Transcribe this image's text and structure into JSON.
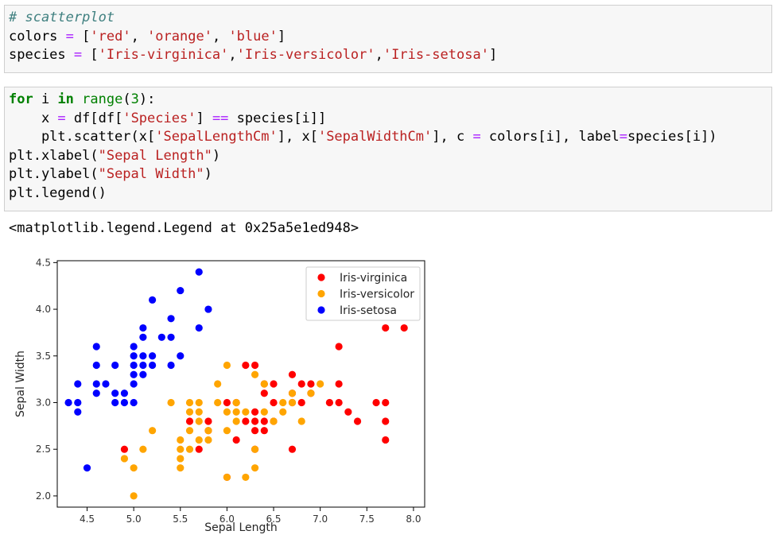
{
  "cell1": {
    "lines": [
      [
        {
          "t": "# scatterplot",
          "c": "comment"
        }
      ],
      [
        {
          "t": "colors "
        },
        {
          "t": "=",
          "c": "op"
        },
        {
          "t": " ["
        },
        {
          "t": "'red'",
          "c": "str"
        },
        {
          "t": ", "
        },
        {
          "t": "'orange'",
          "c": "str"
        },
        {
          "t": ", "
        },
        {
          "t": "'blue'",
          "c": "str"
        },
        {
          "t": "]"
        }
      ],
      [
        {
          "t": "species "
        },
        {
          "t": "=",
          "c": "op"
        },
        {
          "t": " ["
        },
        {
          "t": "'Iris-virginica'",
          "c": "str"
        },
        {
          "t": ","
        },
        {
          "t": "'Iris-versicolor'",
          "c": "str"
        },
        {
          "t": ","
        },
        {
          "t": "'Iris-setosa'",
          "c": "str"
        },
        {
          "t": "]"
        }
      ]
    ]
  },
  "cell2": {
    "lines": [
      [
        {
          "t": "for",
          "c": "kw"
        },
        {
          "t": " i "
        },
        {
          "t": "in",
          "c": "kw"
        },
        {
          "t": " "
        },
        {
          "t": "range",
          "c": "builtin"
        },
        {
          "t": "("
        },
        {
          "t": "3",
          "c": "num"
        },
        {
          "t": "):"
        }
      ],
      [
        {
          "t": "    x "
        },
        {
          "t": "=",
          "c": "op"
        },
        {
          "t": " df[df["
        },
        {
          "t": "'Species'",
          "c": "str"
        },
        {
          "t": "] "
        },
        {
          "t": "==",
          "c": "op"
        },
        {
          "t": " species[i]]"
        }
      ],
      [
        {
          "t": "    plt.scatter(x["
        },
        {
          "t": "'SepalLengthCm'",
          "c": "str"
        },
        {
          "t": "], x["
        },
        {
          "t": "'SepalWidthCm'",
          "c": "str"
        },
        {
          "t": "], c "
        },
        {
          "t": "=",
          "c": "op"
        },
        {
          "t": " colors[i], label"
        },
        {
          "t": "=",
          "c": "op"
        },
        {
          "t": "species[i])"
        }
      ],
      [
        {
          "t": "plt.xlabel("
        },
        {
          "t": "\"Sepal Length\"",
          "c": "str"
        },
        {
          "t": ")"
        }
      ],
      [
        {
          "t": "plt.ylabel("
        },
        {
          "t": "\"Sepal Width\"",
          "c": "str"
        },
        {
          "t": ")"
        }
      ],
      [
        {
          "t": "plt.legend()"
        }
      ]
    ]
  },
  "output": {
    "text": "<matplotlib.legend.Legend at 0x25a5e1ed948>"
  },
  "chart_data": {
    "type": "scatter",
    "xlabel": "Sepal Length",
    "ylabel": "Sepal Width",
    "xlim": [
      4.18,
      8.12
    ],
    "ylim": [
      1.88,
      4.52
    ],
    "xticks": [
      "4.5",
      "5.0",
      "5.5",
      "6.0",
      "6.5",
      "7.0",
      "7.5",
      "8.0"
    ],
    "yticks": [
      "2.0",
      "2.5",
      "3.0",
      "3.5",
      "4.0",
      "4.5"
    ],
    "legend_position": "top-right",
    "series": [
      {
        "name": "Iris-virginica",
        "color": "#ff0000",
        "points": [
          [
            4.9,
            2.5
          ],
          [
            5.6,
            2.8
          ],
          [
            5.7,
            2.5
          ],
          [
            5.8,
            2.8
          ],
          [
            5.8,
            2.7
          ],
          [
            6.0,
            3.0
          ],
          [
            6.0,
            2.2
          ],
          [
            6.1,
            3.0
          ],
          [
            6.1,
            2.6
          ],
          [
            6.2,
            3.4
          ],
          [
            6.2,
            2.8
          ],
          [
            6.3,
            3.4
          ],
          [
            6.3,
            2.9
          ],
          [
            6.3,
            2.8
          ],
          [
            6.3,
            2.7
          ],
          [
            6.3,
            2.5
          ],
          [
            6.4,
            3.2
          ],
          [
            6.4,
            3.1
          ],
          [
            6.4,
            2.8
          ],
          [
            6.4,
            2.7
          ],
          [
            6.5,
            3.2
          ],
          [
            6.5,
            3.0
          ],
          [
            6.5,
            2.8
          ],
          [
            6.7,
            3.3
          ],
          [
            6.7,
            3.1
          ],
          [
            6.7,
            3.0
          ],
          [
            6.7,
            2.5
          ],
          [
            6.8,
            3.2
          ],
          [
            6.8,
            3.0
          ],
          [
            6.9,
            3.2
          ],
          [
            6.9,
            3.1
          ],
          [
            7.1,
            3.0
          ],
          [
            7.2,
            3.6
          ],
          [
            7.2,
            3.2
          ],
          [
            7.2,
            3.0
          ],
          [
            7.3,
            2.9
          ],
          [
            7.4,
            2.8
          ],
          [
            7.6,
            3.0
          ],
          [
            7.7,
            3.8
          ],
          [
            7.7,
            3.0
          ],
          [
            7.7,
            2.8
          ],
          [
            7.7,
            2.6
          ],
          [
            7.9,
            3.8
          ]
        ]
      },
      {
        "name": "Iris-versicolor",
        "color": "#ffa500",
        "points": [
          [
            4.9,
            2.4
          ],
          [
            5.0,
            2.3
          ],
          [
            5.0,
            2.0
          ],
          [
            5.1,
            2.5
          ],
          [
            5.2,
            2.7
          ],
          [
            5.4,
            3.0
          ],
          [
            5.5,
            2.6
          ],
          [
            5.5,
            2.5
          ],
          [
            5.5,
            2.4
          ],
          [
            5.5,
            2.3
          ],
          [
            5.6,
            3.0
          ],
          [
            5.6,
            2.9
          ],
          [
            5.6,
            2.7
          ],
          [
            5.6,
            2.5
          ],
          [
            5.7,
            3.0
          ],
          [
            5.7,
            2.9
          ],
          [
            5.7,
            2.8
          ],
          [
            5.7,
            2.6
          ],
          [
            5.8,
            2.7
          ],
          [
            5.8,
            2.6
          ],
          [
            5.9,
            3.2
          ],
          [
            5.9,
            3.0
          ],
          [
            6.0,
            3.4
          ],
          [
            6.0,
            2.9
          ],
          [
            6.0,
            2.7
          ],
          [
            6.0,
            2.2
          ],
          [
            6.1,
            3.0
          ],
          [
            6.1,
            2.9
          ],
          [
            6.1,
            2.8
          ],
          [
            6.2,
            2.9
          ],
          [
            6.2,
            2.2
          ],
          [
            6.3,
            3.3
          ],
          [
            6.3,
            2.5
          ],
          [
            6.3,
            2.3
          ],
          [
            6.4,
            3.2
          ],
          [
            6.4,
            2.9
          ],
          [
            6.5,
            2.8
          ],
          [
            6.6,
            3.0
          ],
          [
            6.6,
            2.9
          ],
          [
            6.7,
            3.1
          ],
          [
            6.7,
            3.0
          ],
          [
            6.8,
            2.8
          ],
          [
            6.9,
            3.1
          ],
          [
            7.0,
            3.2
          ]
        ]
      },
      {
        "name": "Iris-setosa",
        "color": "#0000ff",
        "points": [
          [
            4.3,
            3.0
          ],
          [
            4.4,
            3.2
          ],
          [
            4.4,
            3.0
          ],
          [
            4.4,
            2.9
          ],
          [
            4.5,
            2.3
          ],
          [
            4.6,
            3.6
          ],
          [
            4.6,
            3.4
          ],
          [
            4.6,
            3.2
          ],
          [
            4.6,
            3.1
          ],
          [
            4.7,
            3.2
          ],
          [
            4.8,
            3.4
          ],
          [
            4.8,
            3.1
          ],
          [
            4.8,
            3.0
          ],
          [
            4.9,
            3.1
          ],
          [
            4.9,
            3.0
          ],
          [
            5.0,
            3.6
          ],
          [
            5.0,
            3.5
          ],
          [
            5.0,
            3.4
          ],
          [
            5.0,
            3.3
          ],
          [
            5.0,
            3.2
          ],
          [
            5.0,
            3.0
          ],
          [
            5.1,
            3.8
          ],
          [
            5.1,
            3.7
          ],
          [
            5.1,
            3.5
          ],
          [
            5.1,
            3.4
          ],
          [
            5.1,
            3.3
          ],
          [
            5.2,
            4.1
          ],
          [
            5.2,
            3.5
          ],
          [
            5.2,
            3.4
          ],
          [
            5.3,
            3.7
          ],
          [
            5.4,
            3.9
          ],
          [
            5.4,
            3.7
          ],
          [
            5.4,
            3.4
          ],
          [
            5.5,
            4.2
          ],
          [
            5.5,
            3.5
          ],
          [
            5.7,
            4.4
          ],
          [
            5.7,
            3.8
          ],
          [
            5.8,
            4.0
          ]
        ]
      }
    ]
  }
}
